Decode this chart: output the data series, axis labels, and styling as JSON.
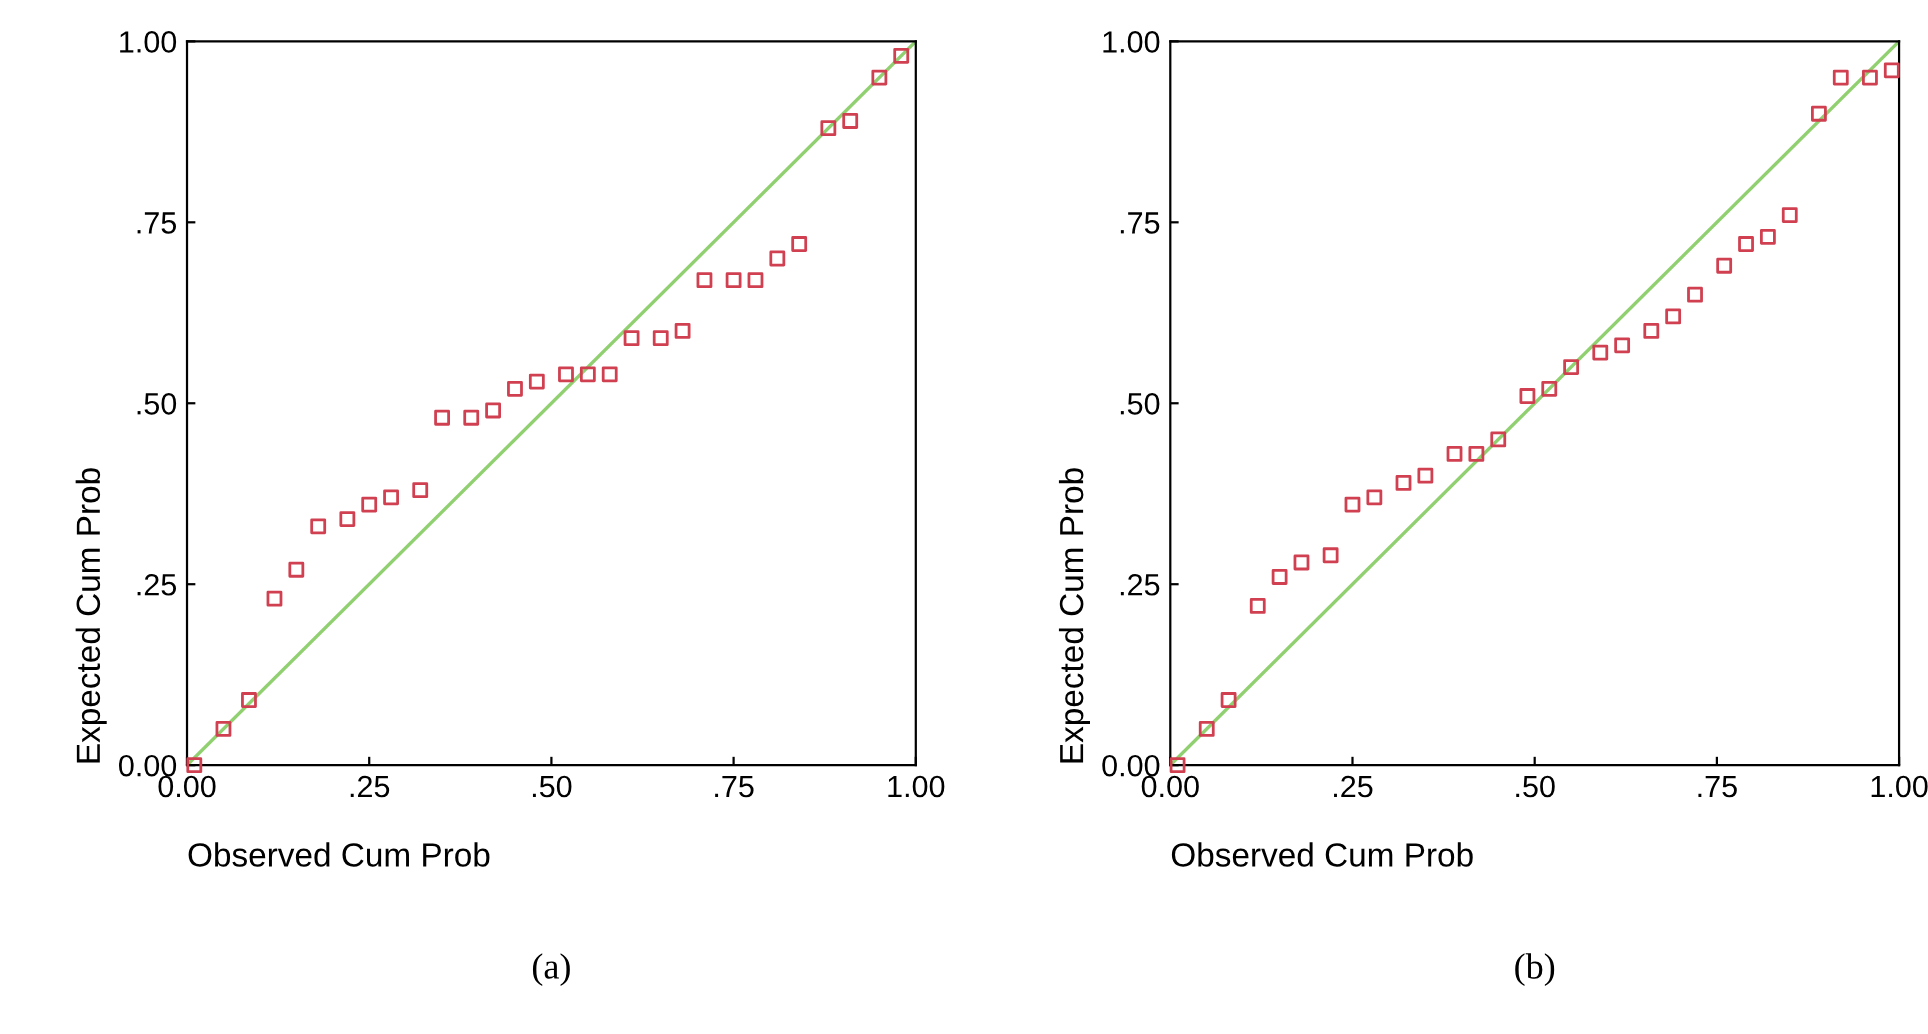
{
  "chart_data": [
    {
      "type": "scatter",
      "xlabel": "Observed Cum Prob",
      "ylabel": "Expected Cum Prob",
      "annotations": [
        "(a)"
      ],
      "grid": false,
      "legend": false,
      "xlim": [
        0,
        1
      ],
      "ylim": [
        0,
        1
      ],
      "xticks": [
        {
          "value": 0,
          "label": "0.00"
        },
        {
          "value": 0.25,
          "label": ".25"
        },
        {
          "value": 0.5,
          "label": ".50"
        },
        {
          "value": 0.75,
          "label": ".75"
        },
        {
          "value": 1,
          "label": "1.00"
        }
      ],
      "yticks": [
        {
          "value": 0,
          "label": "0.00"
        },
        {
          "value": 0.25,
          "label": ".25"
        },
        {
          "value": 0.5,
          "label": ".50"
        },
        {
          "value": 0.75,
          "label": ".75"
        },
        {
          "value": 1,
          "label": "1.00"
        }
      ],
      "series": [
        {
          "type": "line",
          "color": "#90d070",
          "x": [
            0,
            1
          ],
          "values": [
            0,
            1
          ]
        },
        {
          "marker": "square",
          "color": "#d04050",
          "x": [
            0.01,
            0.05,
            0.085,
            0.12,
            0.15,
            0.18,
            0.22,
            0.25,
            0.28,
            0.32,
            0.35,
            0.39,
            0.42,
            0.45,
            0.48,
            0.52,
            0.55,
            0.58,
            0.61,
            0.65,
            0.68,
            0.71,
            0.75,
            0.78,
            0.81,
            0.84,
            0.88,
            0.91,
            0.95,
            0.98
          ],
          "values": [
            0.0,
            0.05,
            0.09,
            0.23,
            0.27,
            0.33,
            0.34,
            0.36,
            0.37,
            0.38,
            0.48,
            0.48,
            0.49,
            0.52,
            0.53,
            0.54,
            0.54,
            0.54,
            0.59,
            0.59,
            0.6,
            0.67,
            0.67,
            0.67,
            0.7,
            0.72,
            0.88,
            0.89,
            0.95,
            0.98
          ]
        }
      ]
    },
    {
      "type": "scatter",
      "xlabel": "Observed Cum Prob",
      "ylabel": "Expected Cum Prob",
      "annotations": [
        "(b)"
      ],
      "grid": false,
      "legend": false,
      "xlim": [
        0,
        1
      ],
      "ylim": [
        0,
        1
      ],
      "xticks": [
        {
          "value": 0,
          "label": "0.00"
        },
        {
          "value": 0.25,
          "label": ".25"
        },
        {
          "value": 0.5,
          "label": ".50"
        },
        {
          "value": 0.75,
          "label": ".75"
        },
        {
          "value": 1,
          "label": "1.00"
        }
      ],
      "yticks": [
        {
          "value": 0,
          "label": "0.00"
        },
        {
          "value": 0.25,
          "label": ".25"
        },
        {
          "value": 0.5,
          "label": ".50"
        },
        {
          "value": 0.75,
          "label": ".75"
        },
        {
          "value": 1,
          "label": "1.00"
        }
      ],
      "series": [
        {
          "type": "line",
          "color": "#90d070",
          "x": [
            0,
            1
          ],
          "values": [
            0,
            1
          ]
        },
        {
          "marker": "square",
          "color": "#d04050",
          "x": [
            0.01,
            0.05,
            0.08,
            0.12,
            0.15,
            0.18,
            0.22,
            0.25,
            0.28,
            0.32,
            0.35,
            0.39,
            0.42,
            0.45,
            0.49,
            0.52,
            0.55,
            0.59,
            0.62,
            0.66,
            0.69,
            0.72,
            0.76,
            0.79,
            0.82,
            0.85,
            0.89,
            0.92,
            0.96,
            0.99
          ],
          "values": [
            0.0,
            0.05,
            0.09,
            0.22,
            0.26,
            0.28,
            0.29,
            0.36,
            0.37,
            0.39,
            0.4,
            0.43,
            0.43,
            0.45,
            0.51,
            0.52,
            0.55,
            0.57,
            0.58,
            0.6,
            0.62,
            0.65,
            0.69,
            0.72,
            0.73,
            0.76,
            0.9,
            0.95,
            0.95,
            0.96
          ]
        }
      ]
    }
  ]
}
